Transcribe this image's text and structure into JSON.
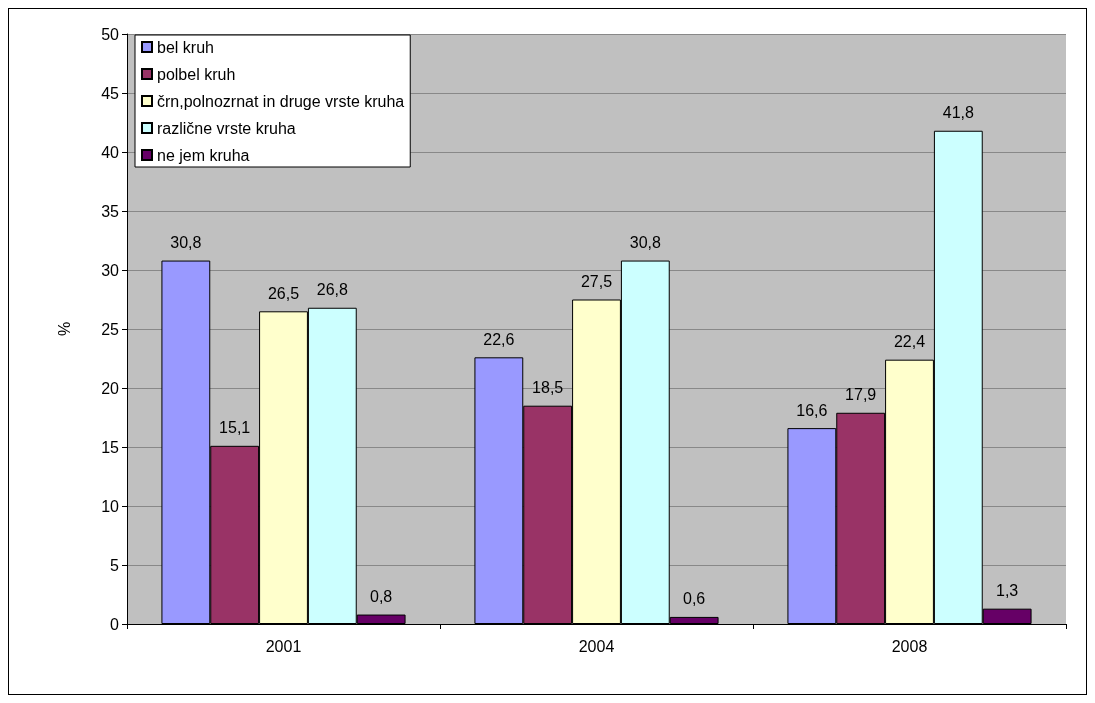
{
  "chart_data": {
    "type": "bar",
    "ylabel": "%",
    "categories": [
      "2001",
      "2004",
      "2008"
    ],
    "series": [
      {
        "name": "bel kruh",
        "color": "#9999ff",
        "values": [
          30.8,
          22.6,
          16.6
        ],
        "value_labels": [
          "30,8",
          "22,6",
          "16,6"
        ]
      },
      {
        "name": "polbel kruh",
        "color": "#993366",
        "values": [
          15.1,
          18.5,
          17.9
        ],
        "value_labels": [
          "15,1",
          "18,5",
          "17,9"
        ]
      },
      {
        "name": "črn,polnozrnat in druge vrste kruha",
        "color": "#ffffcc",
        "values": [
          26.5,
          27.5,
          22.4
        ],
        "value_labels": [
          "26,5",
          "27,5",
          "22,4"
        ]
      },
      {
        "name": "različne vrste kruha",
        "color": "#ccffff",
        "values": [
          26.8,
          30.8,
          41.8
        ],
        "value_labels": [
          "26,8",
          "30,8",
          "41,8"
        ]
      },
      {
        "name": "ne jem kruha",
        "color": "#660066",
        "values": [
          0.8,
          0.6,
          1.3
        ],
        "value_labels": [
          "0,8",
          "0,6",
          "1,3"
        ]
      }
    ],
    "ylim": [
      0,
      50
    ],
    "yticks": [
      0,
      5,
      10,
      15,
      20,
      25,
      30,
      35,
      40,
      45,
      50
    ],
    "grid": "y",
    "legend": "top left"
  }
}
